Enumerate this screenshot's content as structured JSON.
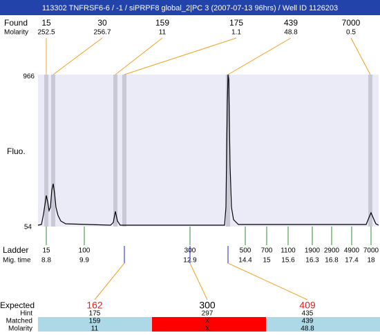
{
  "header": {
    "title": "113302  TNFRSF6-6 / -1 / siPRPF8 global_2|PC 3 (2007-07-13 96hrs) / Well ID 1126203"
  },
  "found": {
    "label": "Found",
    "sublabel": "Molarity",
    "peaks": [
      {
        "size": "15",
        "molarity": "252.5"
      },
      {
        "size": "30",
        "molarity": "256.7"
      },
      {
        "size": "159",
        "molarity": "11"
      },
      {
        "size": "175",
        "molarity": "1.1"
      },
      {
        "size": "439",
        "molarity": "48.8"
      },
      {
        "size": "7000",
        "molarity": "0.5"
      }
    ]
  },
  "plot": {
    "y_label": "Fluo.",
    "y_max": "966",
    "y_min": "54"
  },
  "ladder": {
    "label": "Ladder",
    "sublabel": "Mig. time",
    "items": [
      {
        "size": "15",
        "time": "8.8"
      },
      {
        "size": "100",
        "time": "9.9"
      },
      {
        "size": "300",
        "time": "12.9"
      },
      {
        "size": "500",
        "time": "14.4"
      },
      {
        "size": "700",
        "time": "15"
      },
      {
        "size": "1100",
        "time": "15.6"
      },
      {
        "size": "1900",
        "time": "16.3"
      },
      {
        "size": "2900",
        "time": "16.8"
      },
      {
        "size": "4900",
        "time": "17.4"
      },
      {
        "size": "7000",
        "time": "18"
      }
    ]
  },
  "expected": {
    "label": "Expected",
    "hint_label": "Hint",
    "matched_label": "Matched",
    "molarity_label": "Molarity",
    "items": [
      {
        "expected": "162",
        "hint": "175",
        "matched": "159",
        "molarity": "11"
      },
      {
        "expected": "300",
        "hint": "297",
        "matched": "X",
        "molarity": "X"
      },
      {
        "expected": "409",
        "hint": "435",
        "matched": "439",
        "molarity": "48.8"
      }
    ]
  }
}
